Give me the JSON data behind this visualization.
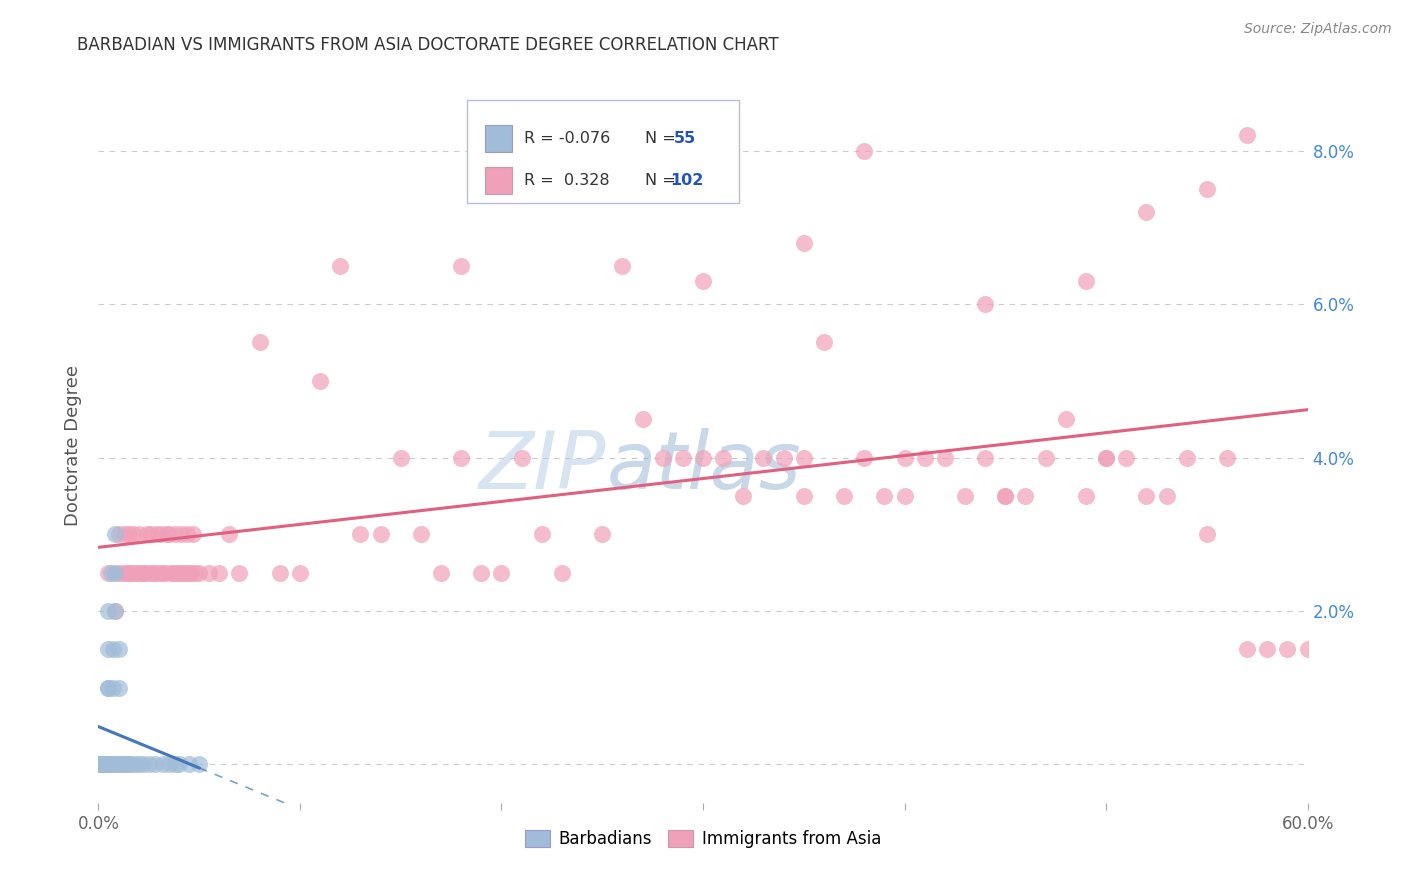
{
  "title": "BARBADIAN VS IMMIGRANTS FROM ASIA DOCTORATE DEGREE CORRELATION CHART",
  "source": "Source: ZipAtlas.com",
  "ylabel": "Doctorate Degree",
  "xlim": [
    0.0,
    0.6
  ],
  "ylim": [
    -0.005,
    0.088
  ],
  "color_barbadian": "#a0bcd8",
  "color_asia": "#f0a0b8",
  "color_line_barbadian": "#4477bb",
  "color_line_asia": "#e06080",
  "background_color": "#ffffff",
  "grid_color": "#cccccc",
  "watermark_color": "#d0dff0",
  "legend_r1": "R = -0.076",
  "legend_n1": "N =  55",
  "legend_r2": "R =  0.328",
  "legend_n2": "N = 102",
  "barb_x": [
    0.001,
    0.001,
    0.001,
    0.001,
    0.002,
    0.002,
    0.002,
    0.002,
    0.002,
    0.002,
    0.003,
    0.003,
    0.003,
    0.003,
    0.003,
    0.003,
    0.004,
    0.004,
    0.004,
    0.004,
    0.005,
    0.005,
    0.005,
    0.005,
    0.006,
    0.006,
    0.006,
    0.007,
    0.007,
    0.007,
    0.008,
    0.008,
    0.008,
    0.009,
    0.009,
    0.01,
    0.01,
    0.01,
    0.011,
    0.012,
    0.013,
    0.014,
    0.015,
    0.016,
    0.018,
    0.02,
    0.022,
    0.025,
    0.028,
    0.032,
    0.035,
    0.038,
    0.04,
    0.045,
    0.05
  ],
  "barb_y": [
    0.0,
    0.0,
    0.0,
    0.0,
    0.0,
    0.0,
    0.0,
    0.0,
    0.0,
    0.0,
    0.0,
    0.0,
    0.0,
    0.0,
    0.0,
    0.0,
    0.0,
    0.0,
    0.0,
    0.0,
    0.01,
    0.01,
    0.015,
    0.02,
    0.0,
    0.0,
    0.025,
    0.0,
    0.01,
    0.015,
    0.02,
    0.025,
    0.03,
    0.0,
    0.0,
    0.0,
    0.01,
    0.015,
    0.0,
    0.0,
    0.0,
    0.0,
    0.0,
    0.0,
    0.0,
    0.0,
    0.0,
    0.0,
    0.0,
    0.0,
    0.0,
    0.0,
    0.0,
    0.0,
    0.0
  ],
  "asia_x": [
    0.005,
    0.008,
    0.01,
    0.01,
    0.012,
    0.013,
    0.014,
    0.015,
    0.015,
    0.016,
    0.017,
    0.018,
    0.019,
    0.02,
    0.021,
    0.022,
    0.023,
    0.024,
    0.025,
    0.026,
    0.027,
    0.028,
    0.029,
    0.03,
    0.031,
    0.032,
    0.033,
    0.034,
    0.035,
    0.036,
    0.037,
    0.038,
    0.039,
    0.04,
    0.041,
    0.042,
    0.043,
    0.044,
    0.045,
    0.046,
    0.047,
    0.048,
    0.05,
    0.055,
    0.06,
    0.065,
    0.07,
    0.08,
    0.09,
    0.1,
    0.11,
    0.12,
    0.13,
    0.14,
    0.15,
    0.16,
    0.17,
    0.18,
    0.19,
    0.2,
    0.21,
    0.22,
    0.23,
    0.25,
    0.27,
    0.28,
    0.29,
    0.3,
    0.31,
    0.32,
    0.33,
    0.34,
    0.35,
    0.36,
    0.37,
    0.38,
    0.39,
    0.4,
    0.41,
    0.42,
    0.43,
    0.44,
    0.45,
    0.46,
    0.47,
    0.48,
    0.49,
    0.5,
    0.51,
    0.52,
    0.53,
    0.54,
    0.55,
    0.56,
    0.57,
    0.58,
    0.59,
    0.6,
    0.35,
    0.4,
    0.45,
    0.5
  ],
  "asia_y": [
    0.025,
    0.02,
    0.025,
    0.03,
    0.025,
    0.03,
    0.025,
    0.025,
    0.03,
    0.025,
    0.03,
    0.025,
    0.025,
    0.03,
    0.025,
    0.025,
    0.025,
    0.03,
    0.025,
    0.03,
    0.025,
    0.025,
    0.03,
    0.025,
    0.03,
    0.025,
    0.025,
    0.03,
    0.03,
    0.025,
    0.025,
    0.03,
    0.025,
    0.025,
    0.03,
    0.025,
    0.025,
    0.03,
    0.025,
    0.025,
    0.03,
    0.025,
    0.025,
    0.025,
    0.025,
    0.03,
    0.025,
    0.055,
    0.025,
    0.025,
    0.05,
    0.065,
    0.03,
    0.03,
    0.04,
    0.03,
    0.025,
    0.04,
    0.025,
    0.025,
    0.04,
    0.03,
    0.025,
    0.03,
    0.045,
    0.04,
    0.04,
    0.04,
    0.04,
    0.035,
    0.04,
    0.04,
    0.04,
    0.055,
    0.035,
    0.04,
    0.035,
    0.04,
    0.04,
    0.04,
    0.035,
    0.04,
    0.035,
    0.035,
    0.04,
    0.045,
    0.035,
    0.04,
    0.04,
    0.035,
    0.035,
    0.04,
    0.03,
    0.04,
    0.015,
    0.015,
    0.015,
    0.015,
    0.035,
    0.035,
    0.035,
    0.04
  ],
  "asia_outliers_x": [
    0.18,
    0.26,
    0.3,
    0.35,
    0.38,
    0.44,
    0.49,
    0.52,
    0.55,
    0.57
  ],
  "asia_outliers_y": [
    0.065,
    0.065,
    0.063,
    0.068,
    0.08,
    0.06,
    0.063,
    0.072,
    0.075,
    0.082
  ]
}
